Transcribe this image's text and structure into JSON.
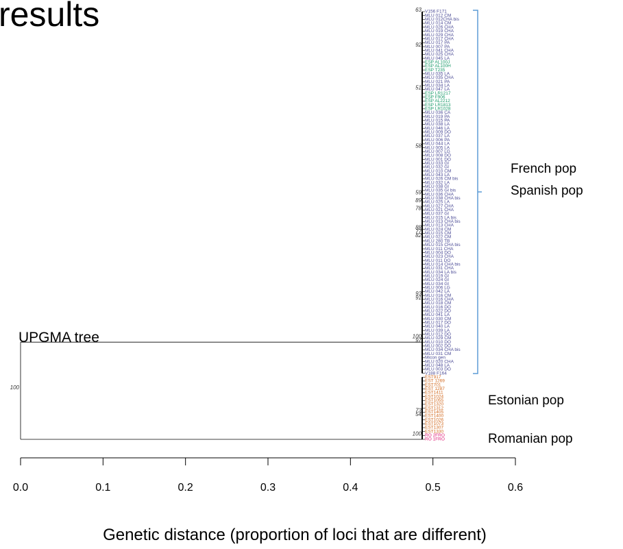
{
  "chart_data": {
    "type": "dendrogram",
    "title": "results",
    "annotation": "UPGMA tree",
    "x_label": "Genetic distance (proportion of loci that are different)",
    "xlim": [
      0,
      0.6
    ],
    "xticks": [
      {
        "value": 0,
        "label": "0.0"
      },
      0.1,
      0.2,
      0.3,
      0.4,
      0.5,
      0.6
    ],
    "leaf_distance": 0.487,
    "root_support": 100,
    "groups": [
      "French pop",
      "Spanish pop",
      "Estonian pop",
      "Romanian pop"
    ],
    "clades": [
      {
        "runs": [
          {
            "color": "#4b4b96",
            "leaves": [
              {
                "name": "V156 F171",
                "support": 63
              },
              "MLU 012 CM",
              "MLU 012CHA bis",
              "MLU 014 CM",
              "MLU 026 CHA",
              "MLU 019 CHA",
              "MLU 029 CHA",
              "MLU 017 CHA",
              "MLU 017 PA",
              {
                "name": "MLU 007 PA",
                "support": 92
              },
              "MLU 041 CHA",
              "MLU 025 CHA",
              "MLU 045 LA"
            ]
          },
          {
            "color": "#1a9a6a",
            "leaves": [
              "ESP AL100J",
              "ESP AL100H",
              "ESP T235"
            ]
          },
          {
            "color": "#4b4b96",
            "leaves": [
              "MLU 035 LA",
              "MLU 035 CHA",
              "MLU 021 PA",
              "MLU 034 LA",
              {
                "name": "MLU 047 LA",
                "support": 51
              }
            ]
          },
          {
            "color": "#1a9a6a",
            "leaves": [
              "ESP LR1217",
              "ESP F906",
              "ESP AL2212",
              "ESP LR1813",
              "ESP LR1028"
            ]
          },
          {
            "color": "#4b4b96",
            "leaves": [
              "MLU 036 CA",
              "MLU 019 PA",
              "MLU 015 PA",
              "MLU 038 LA",
              "MLU 046 LA",
              "MLU 009 DO",
              "MLU 037 LA",
              "MLU 006 PA",
              "MLU 044 LA",
              {
                "name": "MLU 005 LA",
                "support": 58
              },
              "MLU 007 LG",
              "MLU 008 DO",
              "MLU 001 DO",
              "MLU 033 GI",
              "MLU 032 GI",
              "MLU 010 CM",
              "MLU 043 LA",
              "MLU 026 CM bis",
              "MLU 032 LA",
              "MLU 038 GI",
              "MLU 035 GI bis",
              {
                "name": "MLU 036 CHA",
                "support": 59
              },
              "MLU 038 CHA bis",
              {
                "name": "MLU 025 LA",
                "support": 89
              },
              "MLU 027 CHA",
              {
                "name": "MLU 021 CHA",
                "support": 78
              },
              "MLU 037 GI",
              "MLU 015 LA bis",
              "MLU 013 CHA bis",
              "MLU 013 CHA",
              {
                "name": "MLU 024 CM",
                "support": 88
              },
              {
                "name": "MLU 015 CM",
                "support": 77
              },
              {
                "name": "MLU 022 CM",
                "support": 82
              },
              "MLU 280 TB",
              "MLU 015 CHA bis",
              "MLU 011 CHA",
              "MLU 004 DO",
              "MLU 023 CHA",
              "MLU 011 DO",
              "MLU 014 CHA bis",
              "MLU 031 CHA",
              "MLU 034 LA bis",
              "MLU 019 GI",
              "MLU 024 GI",
              "MLU 034 GI",
              "MLU 006 LG",
              "MLU 042 LA",
              {
                "name": "MLU 016 CM",
                "support": 93
              },
              {
                "name": "MLU 016 CHA",
                "support": 91
              },
              "MLU 018 CM",
              "MLU 016 DO",
              "MLU 022 DO",
              "MLU 041 LA",
              "MLU 030 CM",
              "MLU 017 DO",
              "MLU 040 LA",
              "MLU 039 LA",
              "MLU 012 DO",
              {
                "name": "MLU 029 CM",
                "support": 100
              },
              {
                "name": "MLU 010 DO",
                "support": 97
              },
              "MLU 002 DO",
              "MLU 034 CHA bis",
              "MLU 031 CM",
              "Micon gen",
              "MLU 020 CHA",
              "MLU 048 LA",
              "MLU 003 DO",
              "V188 F164"
            ]
          }
        ]
      },
      {
        "runs": [
          {
            "color": "#d2691e",
            "leaves": [
              "EST917",
              "EST 1269",
              "EST701",
              "EST 1287",
              "EST1411",
              "EST1024",
              "EST1055",
              "EST1320",
              "EST1312",
              {
                "name": "EST1405",
                "support": 73
              },
              {
                "name": "EST1400",
                "support": 54
              },
              "EST1026",
              "EST1073",
              "EST1307",
              "EST1330"
            ]
          },
          {
            "color": "#e0207a",
            "leaves": [
              {
                "name": "RO 2FRO",
                "support": 100
              },
              "RO 1FRO"
            ]
          }
        ]
      }
    ]
  }
}
